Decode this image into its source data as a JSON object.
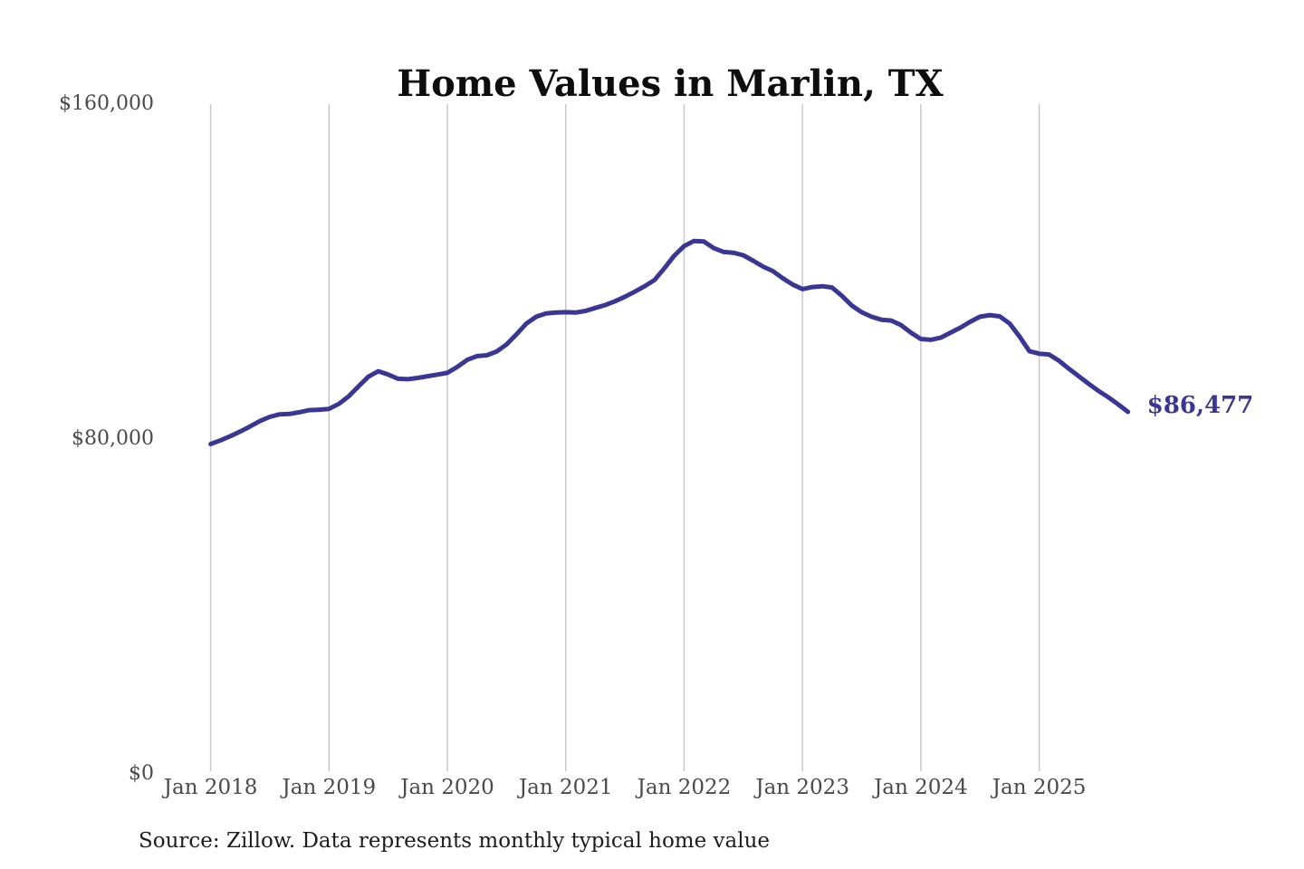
{
  "page": {
    "title": "Home Values in Marlin, TX",
    "source_note": "Source: Zillow. Data represents monthly typical home value"
  },
  "colors": {
    "line": "#3a3794",
    "annotation": "#3a3794",
    "gridline": "#c9c9c9",
    "title": "#0d0d0d",
    "axis_label": "#4a4a4a",
    "source": "#1d1d1d",
    "background": "#ffffff"
  },
  "chart_data": {
    "type": "line",
    "title": "Home Values in Marlin, TX",
    "xlabel": "",
    "ylabel": "",
    "frequency": "monthly",
    "grid": "vertical-only",
    "legend": "none",
    "ylim": [
      0,
      160000
    ],
    "y_ticks": [
      {
        "label": "$0",
        "value": 0
      },
      {
        "label": "$80,000",
        "value": 80000
      },
      {
        "label": "$160,000",
        "value": 160000
      }
    ],
    "x_tick_labels": [
      "Jan 2018",
      "Jan 2019",
      "Jan 2020",
      "Jan 2021",
      "Jan 2022",
      "Jan 2023",
      "Jan 2024",
      "Jan 2025"
    ],
    "end_label": "$86,477",
    "end_value": 86477,
    "x": [
      "2018-01",
      "2018-02",
      "2018-03",
      "2018-04",
      "2018-05",
      "2018-06",
      "2018-07",
      "2018-08",
      "2018-09",
      "2018-10",
      "2018-11",
      "2018-12",
      "2019-01",
      "2019-02",
      "2019-03",
      "2019-04",
      "2019-05",
      "2019-06",
      "2019-07",
      "2019-08",
      "2019-09",
      "2019-10",
      "2019-11",
      "2019-12",
      "2020-01",
      "2020-02",
      "2020-03",
      "2020-04",
      "2020-05",
      "2020-06",
      "2020-07",
      "2020-08",
      "2020-09",
      "2020-10",
      "2020-11",
      "2020-12",
      "2021-01",
      "2021-02",
      "2021-03",
      "2021-04",
      "2021-05",
      "2021-06",
      "2021-07",
      "2021-08",
      "2021-09",
      "2021-10",
      "2021-11",
      "2021-12",
      "2022-01",
      "2022-02",
      "2022-03",
      "2022-04",
      "2022-05",
      "2022-06",
      "2022-07",
      "2022-08",
      "2022-09",
      "2022-10",
      "2022-11",
      "2022-12",
      "2023-01",
      "2023-02",
      "2023-03",
      "2023-04",
      "2023-05",
      "2023-06",
      "2023-07",
      "2023-08",
      "2023-09",
      "2023-10",
      "2023-11",
      "2023-12",
      "2024-01",
      "2024-02",
      "2024-03",
      "2024-04",
      "2024-05",
      "2024-06",
      "2024-07",
      "2024-08",
      "2024-09",
      "2024-10",
      "2024-11",
      "2024-12",
      "2025-01",
      "2025-02",
      "2025-03",
      "2025-04",
      "2025-05",
      "2025-06",
      "2025-07",
      "2025-08",
      "2025-09",
      "2025-10"
    ],
    "series": [
      {
        "name": "Typical home value",
        "values": [
          78800,
          79700,
          80700,
          81800,
          83000,
          84300,
          85300,
          85900,
          86000,
          86400,
          86900,
          87000,
          87200,
          88400,
          90200,
          92600,
          94900,
          96200,
          95400,
          94400,
          94300,
          94600,
          95000,
          95400,
          95800,
          97200,
          98900,
          99800,
          100000,
          100900,
          102600,
          105000,
          107600,
          109200,
          110000,
          110200,
          110300,
          110200,
          110600,
          111300,
          112000,
          112900,
          114000,
          115200,
          116500,
          118000,
          120800,
          123800,
          126100,
          127300,
          127200,
          125600,
          124700,
          124500,
          123900,
          122600,
          121200,
          120100,
          118400,
          116900,
          115800,
          116300,
          116500,
          116200,
          114200,
          111900,
          110300,
          109200,
          108500,
          108300,
          107200,
          105400,
          103900,
          103700,
          104200,
          105400,
          106600,
          108000,
          109200,
          109600,
          109300,
          107600,
          104500,
          101000,
          100400,
          100200,
          98700,
          96800,
          95000,
          93200,
          91500,
          90000,
          88300,
          86477
        ]
      }
    ]
  }
}
